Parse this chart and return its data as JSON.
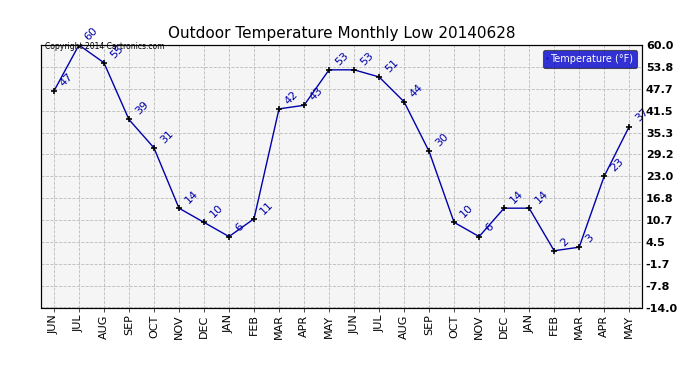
{
  "title": "Outdoor Temperature Monthly Low 20140628",
  "copyright_text": "Copyright 2014 Cartronics.com",
  "months": [
    "JUN",
    "JUL",
    "AUG",
    "SEP",
    "OCT",
    "NOV",
    "DEC",
    "JAN",
    "FEB",
    "MAR",
    "APR",
    "MAY",
    "JUN",
    "JUL",
    "AUG",
    "SEP",
    "OCT",
    "NOV",
    "DEC",
    "JAN",
    "FEB",
    "MAR",
    "APR",
    "MAY"
  ],
  "values": [
    47,
    60,
    55,
    39,
    31,
    14,
    10,
    6,
    11,
    42,
    43,
    53,
    53,
    51,
    44,
    30,
    10,
    6,
    14,
    14,
    2,
    3,
    23,
    37
  ],
  "ylim": [
    -14.0,
    60.0
  ],
  "yticks": [
    -14.0,
    -7.8,
    -1.7,
    4.5,
    10.7,
    16.8,
    23.0,
    29.2,
    35.3,
    41.5,
    47.7,
    53.8,
    60.0
  ],
  "ytick_labels": [
    "-14.0",
    "-7.8",
    "-1.7",
    "4.5",
    "10.7",
    "16.8",
    "23.0",
    "29.2",
    "35.3",
    "41.5",
    "47.7",
    "53.8",
    "60.0"
  ],
  "line_color": "#0000aa",
  "marker_color": "#000000",
  "grid_color": "#bbbbbb",
  "background_color": "#ffffff",
  "plot_bg_color": "#f5f5f5",
  "title_fontsize": 11,
  "tick_fontsize": 8,
  "annot_fontsize": 8,
  "legend_bg": "#0000cc",
  "legend_text": "Temperature (°F)"
}
